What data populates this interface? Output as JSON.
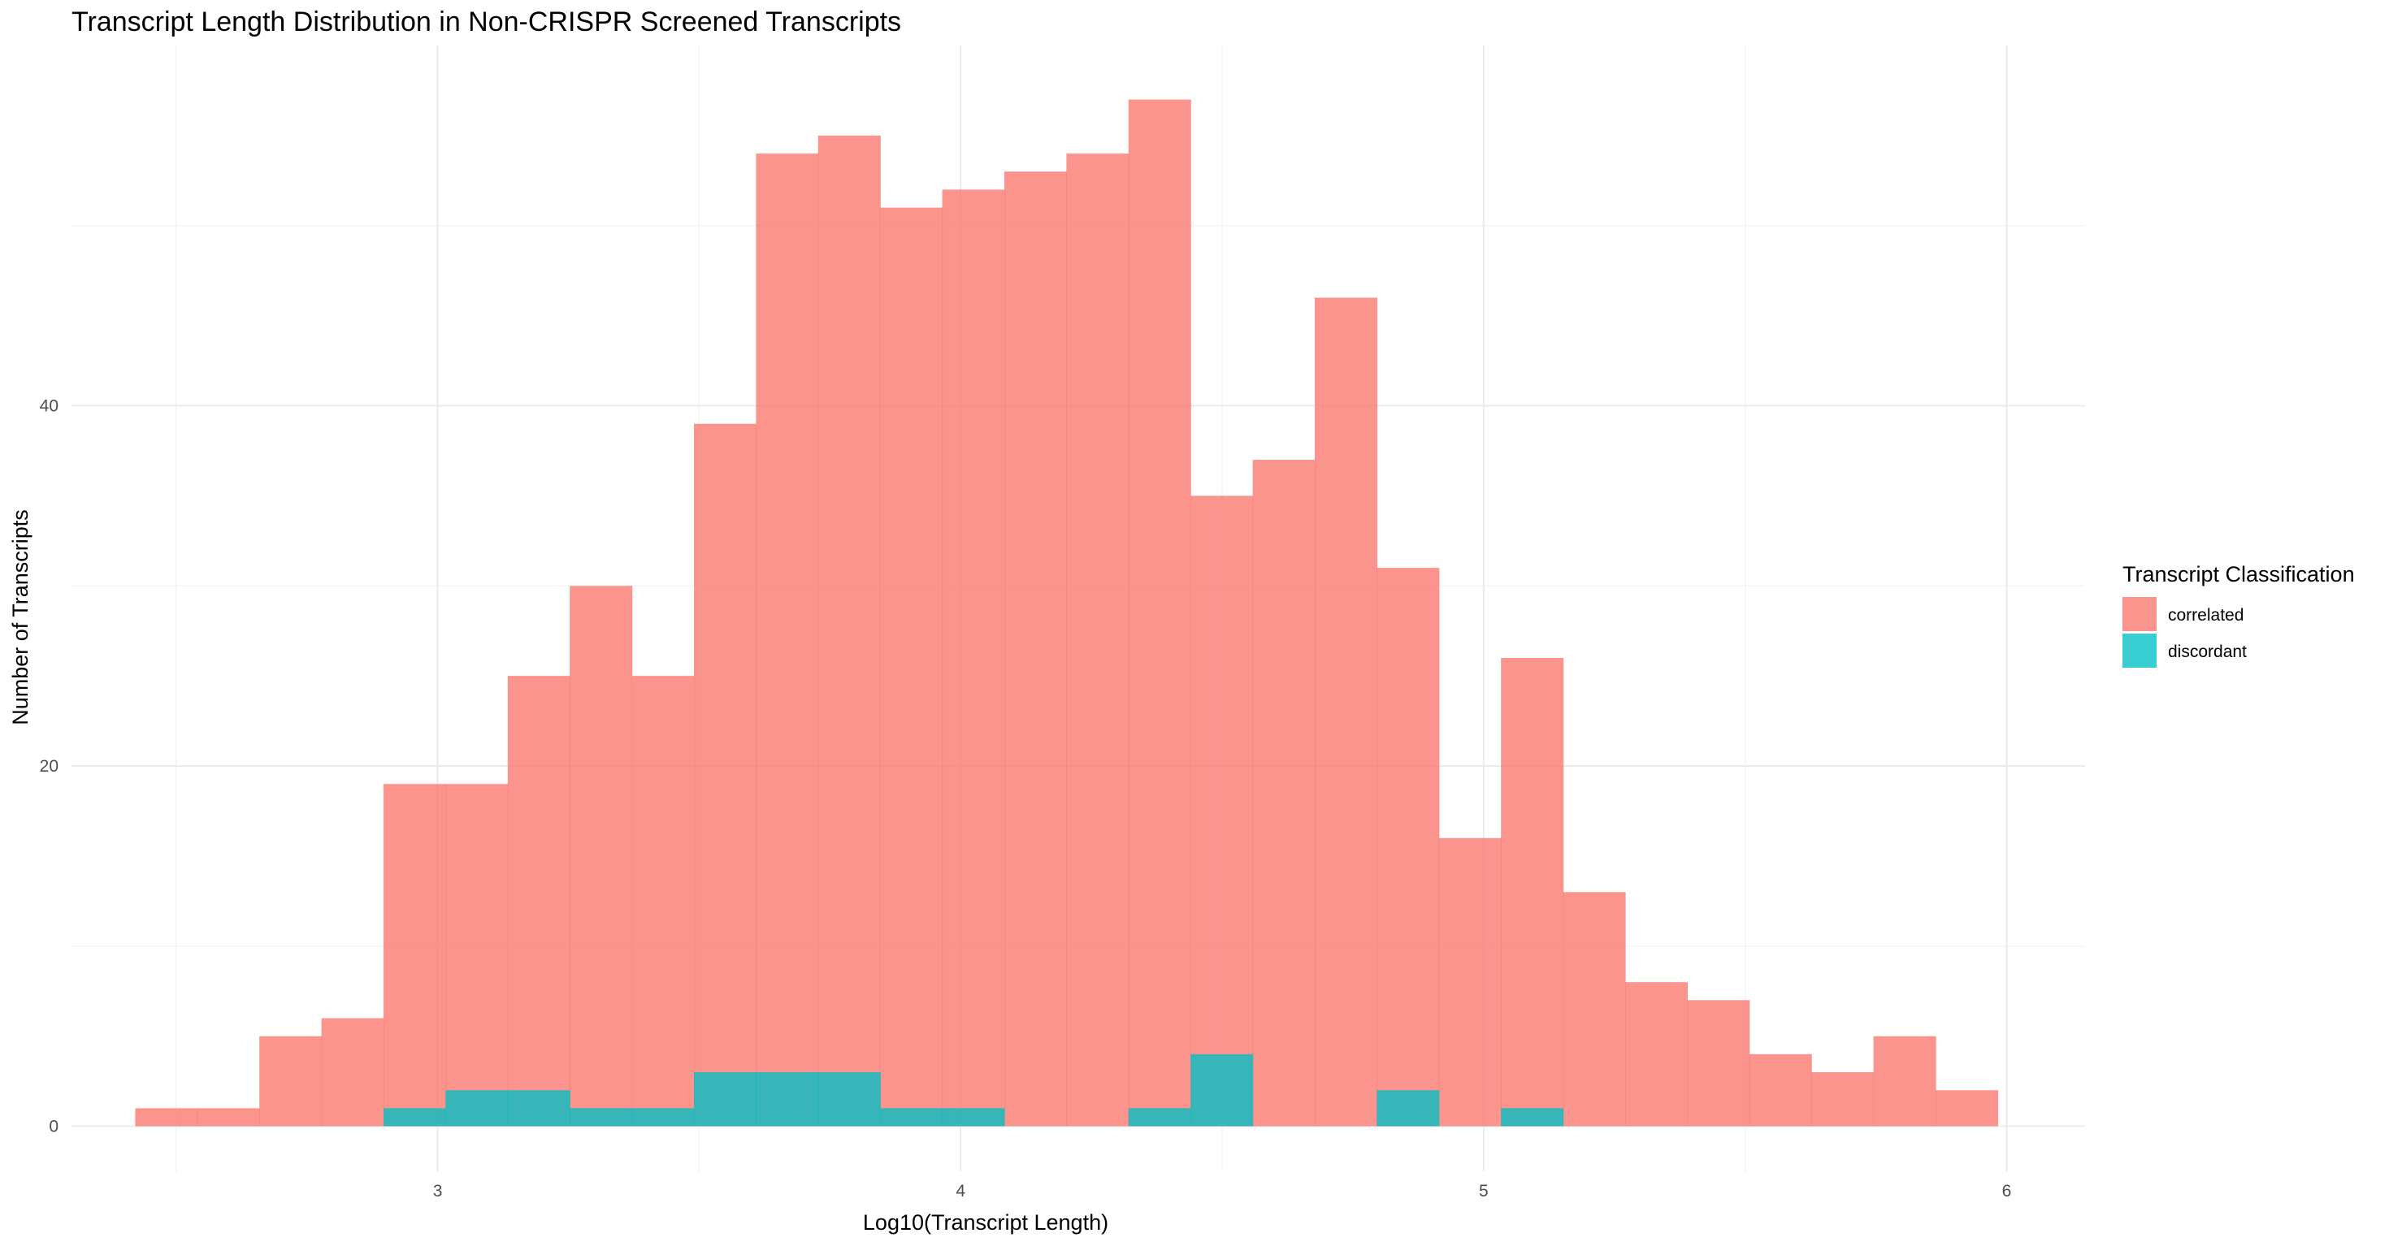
{
  "chart_data": {
    "type": "bar",
    "subtype": "histogram",
    "title": "Transcript Length Distribution in Non-CRISPR Screened Transcripts",
    "xlabel": "Log10(Transcript Length)",
    "ylabel": "Number of Transcripts",
    "xlim": [
      2.3,
      6.15
    ],
    "ylim": [
      -2.5,
      60
    ],
    "x_ticks": [
      3,
      4,
      5,
      6
    ],
    "y_ticks": [
      0,
      20,
      40
    ],
    "grid": true,
    "bin_width": 0.1187,
    "bin_start": 2.4218,
    "legend": {
      "title": "Transcript Classification",
      "placement": "right"
    },
    "series": [
      {
        "name": "correlated",
        "color": "#F8766D",
        "values": [
          1,
          1,
          5,
          6,
          19,
          19,
          25,
          30,
          25,
          39,
          54,
          55,
          51,
          52,
          53,
          54,
          57,
          35,
          37,
          46,
          31,
          16,
          26,
          13,
          8,
          7,
          4,
          3,
          5,
          2
        ]
      },
      {
        "name": "discordant",
        "color": "#00BFC4",
        "values": [
          0,
          0,
          0,
          0,
          1,
          2,
          2,
          1,
          1,
          3,
          3,
          3,
          1,
          1,
          0,
          0,
          1,
          4,
          0,
          0,
          2,
          0,
          1,
          0,
          0,
          0,
          0,
          0,
          0,
          0
        ]
      }
    ]
  }
}
